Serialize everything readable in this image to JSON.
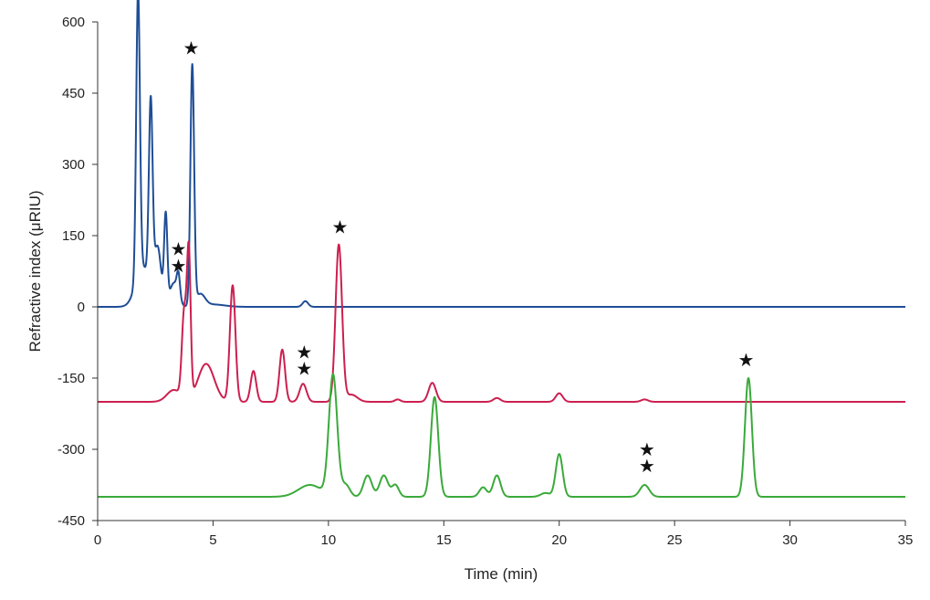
{
  "chart_data": {
    "type": "line",
    "title": "",
    "xlabel": "Time (min)",
    "ylabel": "Refractive index (μRIU)",
    "xlim": [
      0,
      35
    ],
    "ylim": [
      -450,
      600
    ],
    "xticks": [
      0,
      5,
      10,
      15,
      20,
      25,
      30,
      35
    ],
    "yticks": [
      600,
      450,
      300,
      150,
      0,
      -150,
      -300,
      -450
    ],
    "grid": false,
    "legend": "none",
    "series": [
      {
        "color": "#1f4e96",
        "baseline": 0,
        "peaks": [
          {
            "t": 1.75,
            "h": 600,
            "w": 0.08
          },
          {
            "t": 1.95,
            "h": 85,
            "w": 0.3
          },
          {
            "t": 2.3,
            "h": 385,
            "w": 0.08
          },
          {
            "t": 2.6,
            "h": 120,
            "w": 0.15
          },
          {
            "t": 2.95,
            "h": 185,
            "w": 0.07
          },
          {
            "t": 3.3,
            "h": 50,
            "w": 0.18
          },
          {
            "t": 3.5,
            "h": 48,
            "w": 0.07
          },
          {
            "t": 4.1,
            "h": 505,
            "w": 0.08
          },
          {
            "t": 4.45,
            "h": 25,
            "w": 0.2
          },
          {
            "t": 5.0,
            "h": 5,
            "w": 0.5
          },
          {
            "t": 9.0,
            "h": 12,
            "w": 0.12
          }
        ]
      },
      {
        "color": "#cc1f4f",
        "baseline": -200,
        "peaks": [
          {
            "t": 3.3,
            "h": 25,
            "w": 0.3
          },
          {
            "t": 3.75,
            "h": 180,
            "w": 0.1
          },
          {
            "t": 3.95,
            "h": 300,
            "w": 0.08
          },
          {
            "t": 4.7,
            "h": 80,
            "w": 0.35
          },
          {
            "t": 5.85,
            "h": 245,
            "w": 0.12
          },
          {
            "t": 6.75,
            "h": 65,
            "w": 0.12
          },
          {
            "t": 8.0,
            "h": 110,
            "w": 0.12
          },
          {
            "t": 8.9,
            "h": 38,
            "w": 0.15
          },
          {
            "t": 10.45,
            "h": 330,
            "w": 0.14
          },
          {
            "t": 11.0,
            "h": 15,
            "w": 0.25
          },
          {
            "t": 13.0,
            "h": 5,
            "w": 0.12
          },
          {
            "t": 14.5,
            "h": 40,
            "w": 0.16
          },
          {
            "t": 17.3,
            "h": 8,
            "w": 0.15
          },
          {
            "t": 20.0,
            "h": 18,
            "w": 0.15
          },
          {
            "t": 23.7,
            "h": 5,
            "w": 0.15
          }
        ]
      },
      {
        "color": "#3aaa3a",
        "baseline": -400,
        "peaks": [
          {
            "t": 9.2,
            "h": 25,
            "w": 0.5
          },
          {
            "t": 10.2,
            "h": 255,
            "w": 0.18
          },
          {
            "t": 10.75,
            "h": 25,
            "w": 0.18
          },
          {
            "t": 11.7,
            "h": 45,
            "w": 0.18
          },
          {
            "t": 12.4,
            "h": 45,
            "w": 0.18
          },
          {
            "t": 12.9,
            "h": 25,
            "w": 0.15
          },
          {
            "t": 14.6,
            "h": 210,
            "w": 0.16
          },
          {
            "t": 16.7,
            "h": 20,
            "w": 0.16
          },
          {
            "t": 17.3,
            "h": 45,
            "w": 0.16
          },
          {
            "t": 19.4,
            "h": 8,
            "w": 0.2
          },
          {
            "t": 20.0,
            "h": 90,
            "w": 0.15
          },
          {
            "t": 23.7,
            "h": 25,
            "w": 0.2
          },
          {
            "t": 28.2,
            "h": 250,
            "w": 0.15
          }
        ]
      }
    ],
    "annotations": [
      {
        "text": "★",
        "x": 4.05,
        "y": 545
      },
      {
        "text": "★",
        "x": 3.5,
        "y": 122
      },
      {
        "text": "★",
        "x": 3.5,
        "y": 87
      },
      {
        "text": "★",
        "x": 10.5,
        "y": 168
      },
      {
        "text": "★",
        "x": 8.95,
        "y": -95
      },
      {
        "text": "★",
        "x": 8.95,
        "y": -130
      },
      {
        "text": "★",
        "x": 28.1,
        "y": -112
      },
      {
        "text": "★",
        "x": 23.8,
        "y": -300
      },
      {
        "text": "★",
        "x": 23.8,
        "y": -335
      }
    ]
  }
}
